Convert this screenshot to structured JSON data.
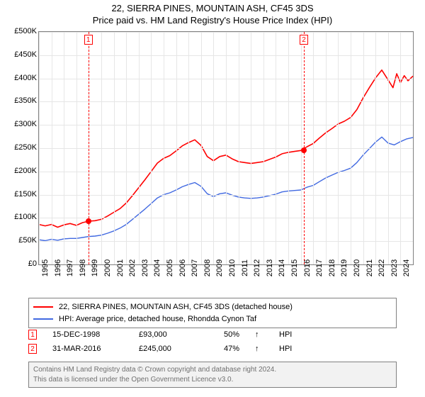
{
  "title_line1": "22, SIERRA PINES, MOUNTAIN ASH, CF45 3DS",
  "title_line2": "Price paid vs. HM Land Registry's House Price Index (HPI)",
  "chart": {
    "type": "line",
    "background_color": "#ffffff",
    "grid_color": "#e6e6e6",
    "border_color": "#808080",
    "title_fontsize": 13,
    "axis_fontsize": 11,
    "y": {
      "min": 0,
      "max": 500000,
      "step": 50000,
      "labels": [
        "£0",
        "£50K",
        "£100K",
        "£150K",
        "£200K",
        "£250K",
        "£300K",
        "£350K",
        "£400K",
        "£450K",
        "£500K"
      ]
    },
    "x": {
      "min": 1995,
      "max": 2025,
      "labels": [
        "1995",
        "1996",
        "1997",
        "1998",
        "1999",
        "2000",
        "2001",
        "2002",
        "2003",
        "2004",
        "2005",
        "2006",
        "2007",
        "2008",
        "2009",
        "2010",
        "2011",
        "2012",
        "2013",
        "2014",
        "2015",
        "2016",
        "2017",
        "2018",
        "2019",
        "2020",
        "2021",
        "2022",
        "2023",
        "2024"
      ],
      "label_rotation": -90
    },
    "series": [
      {
        "name": "property",
        "label": "22, SIERRA PINES, MOUNTAIN ASH, CF45 3DS (detached house)",
        "color": "#ff0000",
        "line_width": 1.6,
        "points": [
          [
            1995,
            86000
          ],
          [
            1995.5,
            83000
          ],
          [
            1996,
            86000
          ],
          [
            1996.5,
            80000
          ],
          [
            1997,
            85000
          ],
          [
            1997.5,
            88000
          ],
          [
            1998,
            84000
          ],
          [
            1998.5,
            90000
          ],
          [
            1999,
            93000
          ],
          [
            1999.5,
            94000
          ],
          [
            2000,
            97000
          ],
          [
            2000.5,
            104000
          ],
          [
            2001,
            112000
          ],
          [
            2001.5,
            120000
          ],
          [
            2002,
            132000
          ],
          [
            2002.5,
            148000
          ],
          [
            2003,
            165000
          ],
          [
            2003.5,
            182000
          ],
          [
            2004,
            200000
          ],
          [
            2004.5,
            218000
          ],
          [
            2005,
            228000
          ],
          [
            2005.5,
            234000
          ],
          [
            2006,
            244000
          ],
          [
            2006.5,
            255000
          ],
          [
            2007,
            262000
          ],
          [
            2007.5,
            268000
          ],
          [
            2008,
            256000
          ],
          [
            2008.5,
            232000
          ],
          [
            2009,
            223000
          ],
          [
            2009.5,
            232000
          ],
          [
            2010,
            235000
          ],
          [
            2010.5,
            227000
          ],
          [
            2011,
            221000
          ],
          [
            2011.5,
            219000
          ],
          [
            2012,
            217000
          ],
          [
            2012.5,
            219000
          ],
          [
            2013,
            221000
          ],
          [
            2013.5,
            226000
          ],
          [
            2014,
            231000
          ],
          [
            2014.5,
            238000
          ],
          [
            2015,
            241000
          ],
          [
            2015.5,
            243000
          ],
          [
            2016,
            245000
          ],
          [
            2016.5,
            253000
          ],
          [
            2017,
            260000
          ],
          [
            2017.5,
            272000
          ],
          [
            2018,
            283000
          ],
          [
            2018.5,
            292000
          ],
          [
            2019,
            302000
          ],
          [
            2019.5,
            308000
          ],
          [
            2020,
            316000
          ],
          [
            2020.5,
            333000
          ],
          [
            2021,
            358000
          ],
          [
            2021.5,
            380000
          ],
          [
            2022,
            401000
          ],
          [
            2022.5,
            418000
          ],
          [
            2023,
            397000
          ],
          [
            2023.4,
            380000
          ],
          [
            2023.7,
            410000
          ],
          [
            2024,
            391000
          ],
          [
            2024.3,
            406000
          ],
          [
            2024.6,
            395000
          ],
          [
            2025,
            405000
          ]
        ]
      },
      {
        "name": "hpi",
        "label": "HPI: Average price, detached house, Rhondda Cynon Taf",
        "color": "#4169e1",
        "line_width": 1.4,
        "points": [
          [
            1995,
            53000
          ],
          [
            1995.5,
            51000
          ],
          [
            1996,
            54000
          ],
          [
            1996.5,
            52000
          ],
          [
            1997,
            55000
          ],
          [
            1997.5,
            56000
          ],
          [
            1998,
            56000
          ],
          [
            1998.5,
            58000
          ],
          [
            1999,
            60000
          ],
          [
            1999.5,
            61000
          ],
          [
            2000,
            63000
          ],
          [
            2000.5,
            67000
          ],
          [
            2001,
            72000
          ],
          [
            2001.5,
            78000
          ],
          [
            2002,
            86000
          ],
          [
            2002.5,
            97000
          ],
          [
            2003,
            108000
          ],
          [
            2003.5,
            119000
          ],
          [
            2004,
            131000
          ],
          [
            2004.5,
            143000
          ],
          [
            2005,
            150000
          ],
          [
            2005.5,
            154000
          ],
          [
            2006,
            160000
          ],
          [
            2006.5,
            167000
          ],
          [
            2007,
            172000
          ],
          [
            2007.5,
            176000
          ],
          [
            2008,
            168000
          ],
          [
            2008.5,
            152000
          ],
          [
            2009,
            146000
          ],
          [
            2009.5,
            152000
          ],
          [
            2010,
            154000
          ],
          [
            2010.5,
            149000
          ],
          [
            2011,
            145000
          ],
          [
            2011.5,
            143000
          ],
          [
            2012,
            142000
          ],
          [
            2012.5,
            143000
          ],
          [
            2013,
            145000
          ],
          [
            2013.5,
            148000
          ],
          [
            2014,
            151000
          ],
          [
            2014.5,
            156000
          ],
          [
            2015,
            158000
          ],
          [
            2015.5,
            159000
          ],
          [
            2016,
            160000
          ],
          [
            2016.5,
            166000
          ],
          [
            2017,
            170000
          ],
          [
            2017.5,
            178000
          ],
          [
            2018,
            186000
          ],
          [
            2018.5,
            192000
          ],
          [
            2019,
            198000
          ],
          [
            2019.5,
            202000
          ],
          [
            2020,
            207000
          ],
          [
            2020.5,
            219000
          ],
          [
            2021,
            235000
          ],
          [
            2021.5,
            249000
          ],
          [
            2022,
            263000
          ],
          [
            2022.5,
            274000
          ],
          [
            2023,
            261000
          ],
          [
            2023.5,
            257000
          ],
          [
            2024,
            264000
          ],
          [
            2024.5,
            270000
          ],
          [
            2025,
            273000
          ]
        ]
      }
    ],
    "sale_markers": [
      {
        "n": "1",
        "year": 1998.96,
        "price": 93000
      },
      {
        "n": "2",
        "year": 2016.25,
        "price": 245000
      }
    ]
  },
  "legend": {
    "series1": "22, SIERRA PINES, MOUNTAIN ASH, CF45 3DS (detached house)",
    "series2": "HPI: Average price, detached house, Rhondda Cynon Taf"
  },
  "sales": [
    {
      "n": "1",
      "date": "15-DEC-1998",
      "price": "£93,000",
      "pct": "50%",
      "arrow": "↑",
      "suffix": "HPI"
    },
    {
      "n": "2",
      "date": "31-MAR-2016",
      "price": "£245,000",
      "pct": "47%",
      "arrow": "↑",
      "suffix": "HPI"
    }
  ],
  "footer_line1": "Contains HM Land Registry data © Crown copyright and database right 2024.",
  "footer_line2": "This data is licensed under the Open Government Licence v3.0.",
  "colors": {
    "marker_border": "#ff0000",
    "footer_bg": "#f2f2f2",
    "footer_text": "#707070"
  }
}
